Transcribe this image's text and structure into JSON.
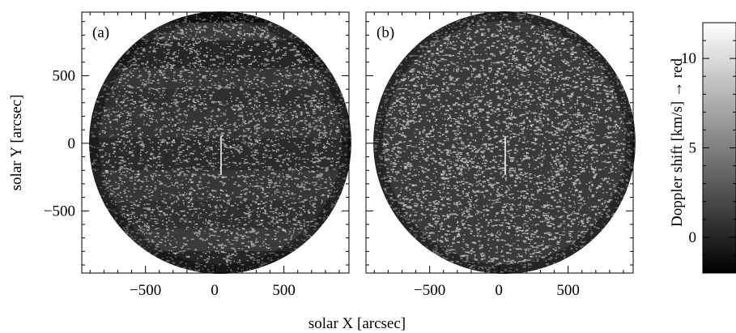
{
  "chart_data": [
    {
      "type": "heatmap",
      "panel_label": "(a)",
      "xlabel": "solar X  [arcsec]",
      "ylabel": "solar Y  [arcsec]",
      "xlim": [
        -960,
        970
      ],
      "ylim": [
        -960,
        970
      ],
      "xticks": [
        -500,
        0,
        500
      ],
      "yticks": [
        -500,
        0,
        500
      ],
      "xtick_labels": [
        "−500",
        "0",
        "500"
      ],
      "ytick_labels": [
        "−500",
        "0",
        "500"
      ],
      "content": "solar disk Doppler-shift map, radius about 960 arcsec, with horizontal banding"
    },
    {
      "type": "heatmap",
      "panel_label": "(b)",
      "xlabel": "solar X  [arcsec]",
      "xlim": [
        -960,
        970
      ],
      "ylim": [
        -960,
        970
      ],
      "xticks": [
        -500,
        0,
        500
      ],
      "yticks": [
        -500,
        0,
        500
      ],
      "xtick_labels": [
        "−500",
        "0",
        "500"
      ],
      "content": "solar disk Doppler-shift map, radius about 960 arcsec, banding corrected"
    }
  ],
  "colorbar": {
    "label": "Doppler shift  [km/s]  →  red",
    "min": -2,
    "max": 12,
    "ticks": [
      0,
      5,
      10
    ],
    "tick_labels": [
      "0",
      "5",
      "10"
    ],
    "colormap": "grayscale",
    "low_color": "#000000",
    "high_color": "#ffffff"
  }
}
